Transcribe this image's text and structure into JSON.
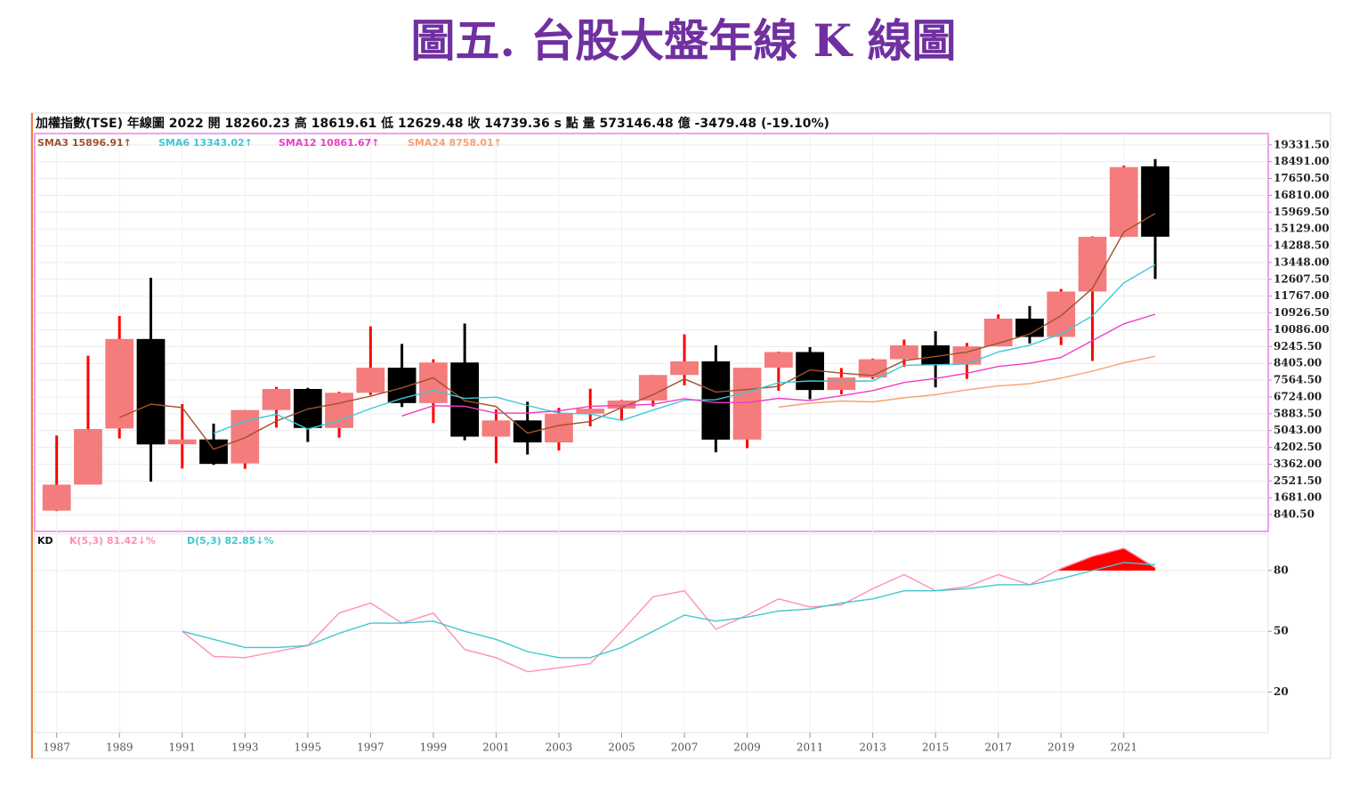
{
  "title": "圖五. 台股大盤年線 K 線圖",
  "chart_data": [
    {
      "type": "candlestick",
      "header": "加權指數(TSE)   年線圖  2022 開 18260.23 高 18619.61 低 12629.48 收 14739.36 s 點 量 573146.48 億  -3479.48 (-19.10%)",
      "x": [
        1987,
        1988,
        1989,
        1990,
        1991,
        1992,
        1993,
        1994,
        1995,
        1996,
        1997,
        1998,
        1999,
        2000,
        2001,
        2002,
        2003,
        2004,
        2005,
        2006,
        2007,
        2008,
        2009,
        2010,
        2011,
        2012,
        2013,
        2014,
        2015,
        2016,
        2017,
        2018,
        2019,
        2020,
        2021,
        2022
      ],
      "open": [
        1039,
        2341,
        5146,
        9624,
        4357,
        4600,
        3400,
        6070,
        7124,
        5173,
        6933,
        8187,
        6418,
        8448,
        4739,
        5551,
        4452,
        5890,
        6139,
        6548,
        7823,
        8506,
        4591,
        8188,
        8972,
        7072,
        7699,
        8611,
        9307,
        8338,
        9253,
        10642,
        9727,
        11997,
        14732,
        18260.23
      ],
      "high": [
        4796,
        8789,
        10773,
        12682,
        6365,
        5391,
        6070,
        7228,
        7180,
        6982,
        10256,
        9378,
        8608,
        10393,
        6104,
        6484,
        6182,
        7135,
        6575,
        7823,
        9859,
        9309,
        8188,
        8990,
        9220,
        8170,
        8647,
        9593,
        10014,
        9426,
        10854,
        11270,
        12126,
        14760,
        18291,
        18619.61
      ],
      "low": [
        1016,
        2341,
        4645,
        2485,
        3142,
        3327,
        3135,
        5194,
        4474,
        4690,
        6820,
        6219,
        5422,
        4555,
        3411,
        3845,
        4044,
        5255,
        5565,
        6257,
        7306,
        3955,
        4164,
        7032,
        6609,
        6857,
        7616,
        8230,
        7203,
        7627,
        9253,
        9400,
        9319,
        8523,
        14720,
        12629.48
      ],
      "close": [
        2339,
        5119,
        9624,
        4350,
        4600,
        3377,
        6070,
        7124,
        5173,
        6933,
        8187,
        6418,
        8448,
        4739,
        5551,
        4452,
        5890,
        6139,
        6548,
        7823,
        8506,
        4591,
        8188,
        8972,
        7072,
        7699,
        8611,
        9307,
        8338,
        9253,
        10642,
        9727,
        11997,
        14732,
        18218,
        14739.36
      ],
      "up_color": "#f47c7c",
      "up_wick_color": "#ff0000",
      "down_color": "#000000",
      "series": [
        {
          "name": "SMA3 15896.91↑",
          "color": "#a0522d",
          "values": [
            null,
            null,
            5694,
            6364,
            6191,
            4109,
            4682,
            5524,
            6122,
            6410,
            6764,
            7179,
            7684,
            6535,
            6246,
            4914,
            5298,
            5494,
            6192,
            6837,
            7626,
            6973,
            7095,
            7250,
            8077,
            7914,
            7794,
            8539,
            8752,
            8966,
            9411,
            9874,
            10789,
            12152,
            14982,
            15896.91
          ]
        },
        {
          "name": "SMA6 13343.02↑",
          "color": "#3cc8d8",
          "values": [
            null,
            null,
            null,
            null,
            null,
            4902,
            5523,
            5858,
            5116,
            5546,
            6144,
            6651,
            7047,
            6650,
            6713,
            6299,
            5916,
            5870,
            5553,
            6067,
            6560,
            6583,
            6966,
            7438,
            7525,
            7505,
            7522,
            8308,
            8333,
            8380,
            8975,
            9313,
            9877,
            10782,
            12428,
            13343.02
          ]
        },
        {
          "name": "SMA12 10861.67↑",
          "color": "#f03cc8",
          "values": [
            null,
            null,
            null,
            null,
            null,
            null,
            null,
            null,
            null,
            null,
            null,
            5776,
            6285,
            6254,
            5914,
            5923,
            6030,
            6260,
            6300,
            6358,
            6636,
            6441,
            6441,
            6654,
            6539,
            6786,
            7041,
            7446,
            7650,
            7909,
            8250,
            8409,
            8700,
            9545,
            10381,
            10861.67
          ]
        },
        {
          "name": "SMA24 8758.01↑",
          "color": "#f8a070",
          "values": [
            null,
            null,
            null,
            null,
            null,
            null,
            null,
            null,
            null,
            null,
            null,
            null,
            null,
            null,
            null,
            null,
            null,
            null,
            null,
            null,
            null,
            null,
            null,
            6215,
            6412,
            6520,
            6478,
            6684,
            6840,
            7085,
            7275,
            7384,
            7668,
            8014,
            8432,
            8758.01
          ]
        }
      ],
      "xlim": [
        1986.3,
        2025.6
      ],
      "xticks": [
        1987,
        1989,
        1991,
        1993,
        1995,
        1997,
        1999,
        2001,
        2003,
        2005,
        2007,
        2009,
        2011,
        2013,
        2015,
        2017,
        2019,
        2021
      ],
      "ylim": [
        0,
        19900
      ],
      "yticks": [
        {
          "value": 840.5,
          "label": "840.50"
        },
        {
          "value": 1681,
          "label": "1681.00"
        },
        {
          "value": 2521.5,
          "label": "2521.50"
        },
        {
          "value": 3362,
          "label": "3362.00"
        },
        {
          "value": 4202.5,
          "label": "4202.50"
        },
        {
          "value": 5043,
          "label": "5043.00"
        },
        {
          "value": 5883.5,
          "label": "5883.50"
        },
        {
          "value": 6724,
          "label": "6724.00"
        },
        {
          "value": 7564.5,
          "label": "7564.50"
        },
        {
          "value": 8405,
          "label": "8405.00"
        },
        {
          "value": 9245.5,
          "label": "9245.50"
        },
        {
          "value": 10086,
          "label": "10086.00"
        },
        {
          "value": 10926.5,
          "label": "10926.50"
        },
        {
          "value": 11767,
          "label": "11767.00"
        },
        {
          "value": 12607.5,
          "label": "12607.50"
        },
        {
          "value": 13448,
          "label": "13448.00"
        },
        {
          "value": 14288.5,
          "label": "14288.50"
        },
        {
          "value": 15129,
          "label": "15129.00"
        },
        {
          "value": 15969.5,
          "label": "15969.50"
        },
        {
          "value": 16810,
          "label": "16810.00"
        },
        {
          "value": 17650.5,
          "label": "17650.50"
        },
        {
          "value": 18491,
          "label": "18491.00"
        },
        {
          "value": 19331.5,
          "label": "19331.50"
        }
      ],
      "grid": true
    },
    {
      "type": "line",
      "title": "KD",
      "x": [
        1987,
        1988,
        1989,
        1990,
        1991,
        1992,
        1993,
        1994,
        1995,
        1996,
        1997,
        1998,
        1999,
        2000,
        2001,
        2002,
        2003,
        2004,
        2005,
        2006,
        2007,
        2008,
        2009,
        2010,
        2011,
        2012,
        2013,
        2014,
        2015,
        2016,
        2017,
        2018,
        2019,
        2020,
        2021,
        2022
      ],
      "series": [
        {
          "name": "K(5,3) 81.42↓%",
          "color": "#ff90b4",
          "values": [
            null,
            null,
            null,
            null,
            50,
            37.6,
            37,
            40,
            43,
            59,
            64,
            54,
            59,
            41,
            37,
            30,
            32,
            34,
            50,
            67,
            70,
            51,
            58,
            66,
            62,
            63,
            71,
            78,
            70,
            72,
            78,
            73,
            81,
            87,
            91,
            81.42
          ]
        },
        {
          "name": "D(5,3) 82.85↓%",
          "color": "#40c8d0",
          "values": [
            null,
            null,
            null,
            null,
            50,
            46,
            42,
            42,
            43,
            49,
            54,
            54,
            55,
            50,
            46,
            40,
            37,
            37,
            42,
            50,
            58,
            55,
            57,
            60,
            61,
            64,
            66,
            70,
            70,
            71,
            73,
            73,
            76,
            80,
            84,
            82.85
          ]
        }
      ],
      "fill_above": 80,
      "fill_color": "#ff0000",
      "xlim": [
        1986.3,
        2025.6
      ],
      "ylim": [
        0,
        98
      ],
      "yticks": [
        20,
        50,
        80
      ],
      "grid": true
    }
  ]
}
